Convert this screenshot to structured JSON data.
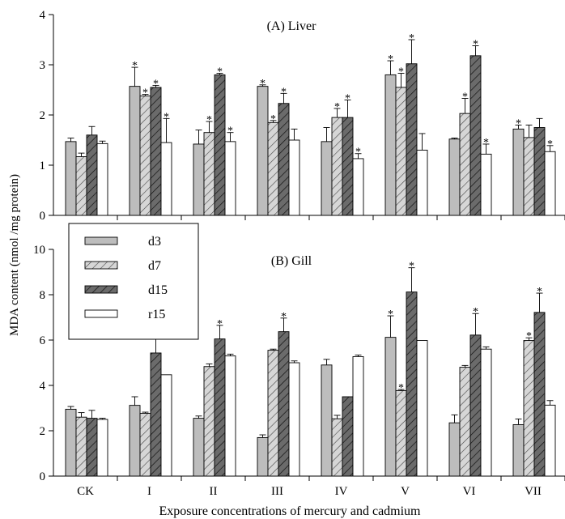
{
  "shared": {
    "ylabel": "MDA content (nmol /mg protein)",
    "xlabel": "Exposure concentrations of mercury and cadmium",
    "colors": {
      "d3": "#bdbdbd",
      "d7": "#d6d6d6",
      "d15": "#6b6b6b",
      "r15": "#ffffff"
    }
  },
  "chart_data": [
    {
      "type": "bar",
      "title": "(A) Liver",
      "categories": [
        "CK",
        "I",
        "II",
        "III",
        "IV",
        "V",
        "VI",
        "VII"
      ],
      "ylim": [
        0,
        4
      ],
      "yticks": [
        0,
        1,
        2,
        3,
        4
      ],
      "series": [
        {
          "name": "d3",
          "values": [
            1.47,
            2.57,
            1.42,
            2.57,
            1.47,
            2.8,
            1.52,
            1.72
          ],
          "errors": [
            0.07,
            0.38,
            0.28,
            0.03,
            0.28,
            0.28,
            0.02,
            0.08
          ],
          "sig": [
            false,
            true,
            false,
            true,
            false,
            true,
            false,
            true
          ]
        },
        {
          "name": "d7",
          "values": [
            1.17,
            2.38,
            1.65,
            1.85,
            1.95,
            2.55,
            2.03,
            1.55
          ],
          "errors": [
            0.07,
            0.03,
            0.22,
            0.04,
            0.18,
            0.28,
            0.3,
            0.25
          ],
          "sig": [
            false,
            true,
            true,
            true,
            true,
            true,
            true,
            false
          ]
        },
        {
          "name": "d15",
          "values": [
            1.6,
            2.55,
            2.8,
            2.23,
            1.95,
            3.02,
            3.18,
            1.75
          ],
          "errors": [
            0.17,
            0.04,
            0.03,
            0.2,
            0.35,
            0.48,
            0.2,
            0.18
          ],
          "sig": [
            false,
            true,
            true,
            true,
            true,
            true,
            true,
            false
          ]
        },
        {
          "name": "r15",
          "values": [
            1.43,
            1.45,
            1.47,
            1.5,
            1.13,
            1.3,
            1.22,
            1.27
          ],
          "errors": [
            0.05,
            0.48,
            0.18,
            0.22,
            0.1,
            0.33,
            0.2,
            0.12
          ],
          "sig": [
            false,
            true,
            true,
            false,
            true,
            false,
            true,
            true
          ]
        }
      ]
    },
    {
      "type": "bar",
      "title": "(B) Gill",
      "categories": [
        "CK",
        "I",
        "II",
        "III",
        "IV",
        "V",
        "VI",
        "VII"
      ],
      "ylim": [
        0,
        10
      ],
      "yticks": [
        0,
        2,
        4,
        6,
        8,
        10
      ],
      "legend": {
        "position": "top-left",
        "labels": [
          "d3",
          "d7",
          "d15",
          "r15"
        ]
      },
      "series": [
        {
          "name": "d3",
          "values": [
            2.95,
            3.12,
            2.55,
            1.7,
            4.9,
            6.12,
            2.35,
            2.27
          ],
          "errors": [
            0.12,
            0.38,
            0.1,
            0.12,
            0.25,
            0.95,
            0.35,
            0.25
          ],
          "sig": [
            false,
            false,
            false,
            false,
            false,
            true,
            false,
            false
          ]
        },
        {
          "name": "d7",
          "values": [
            2.6,
            2.77,
            4.83,
            5.55,
            2.53,
            3.77,
            4.8,
            5.98
          ],
          "errors": [
            0.2,
            0.05,
            0.12,
            0.05,
            0.15,
            0.05,
            0.08,
            0.12
          ],
          "sig": [
            false,
            false,
            false,
            false,
            false,
            true,
            false,
            true
          ]
        },
        {
          "name": "d15",
          "values": [
            2.55,
            5.43,
            6.05,
            6.37,
            3.5,
            8.12,
            6.22,
            7.22
          ],
          "errors": [
            0.35,
            0.8,
            0.6,
            0.6,
            0.0,
            1.07,
            0.95,
            0.85
          ],
          "sig": [
            false,
            true,
            true,
            true,
            false,
            true,
            true,
            true
          ]
        },
        {
          "name": "r15",
          "values": [
            2.5,
            4.47,
            5.3,
            5.0,
            5.27,
            5.98,
            5.6,
            3.13
          ],
          "errors": [
            0.05,
            0.0,
            0.08,
            0.08,
            0.07,
            0.0,
            0.1,
            0.2
          ],
          "sig": [
            false,
            false,
            false,
            false,
            false,
            false,
            false,
            false
          ]
        }
      ]
    }
  ]
}
